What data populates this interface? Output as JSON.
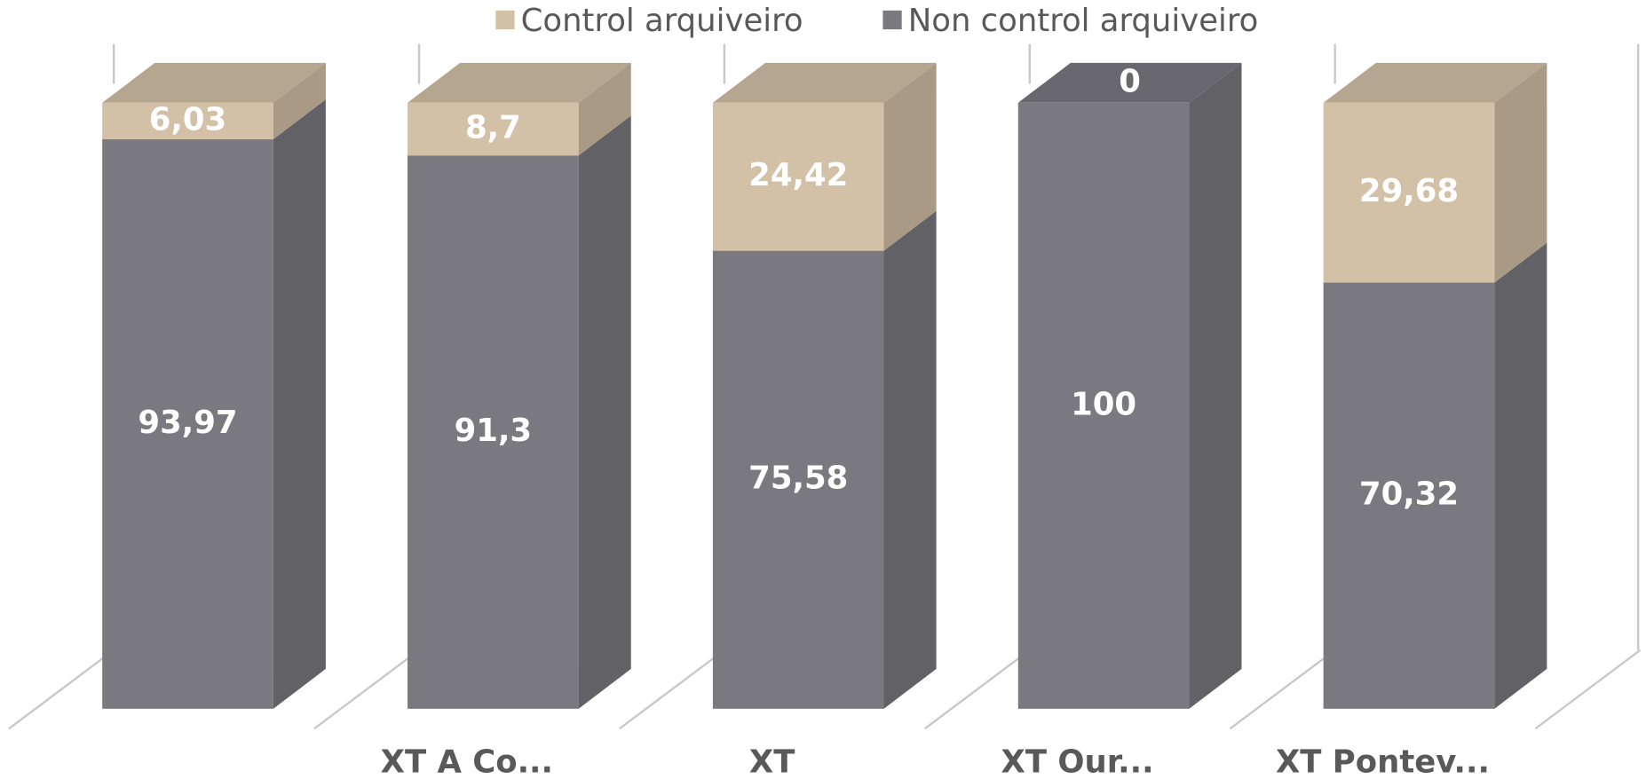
{
  "chart_data": {
    "type": "bar3d_stacked",
    "categories": [
      null,
      "XT A Co...",
      "XT",
      "XT Our...",
      "XT Pontev..."
    ],
    "series": [
      {
        "name": "Control arquiveiro",
        "color": "#d3c1a7",
        "values": [
          6.03,
          8.7,
          24.42,
          0,
          29.68
        ],
        "value_labels": [
          "6,03",
          "8,7",
          "24,42",
          "0",
          "29,68"
        ]
      },
      {
        "name": "Non control arquiveiro",
        "color": "#7a7980",
        "values": [
          93.97,
          91.3,
          75.58,
          100,
          70.32
        ],
        "value_labels": [
          "93,97",
          "91,3",
          "75,58",
          "100",
          "70,32"
        ]
      }
    ],
    "ylim": [
      0,
      100
    ],
    "legend": "top"
  }
}
